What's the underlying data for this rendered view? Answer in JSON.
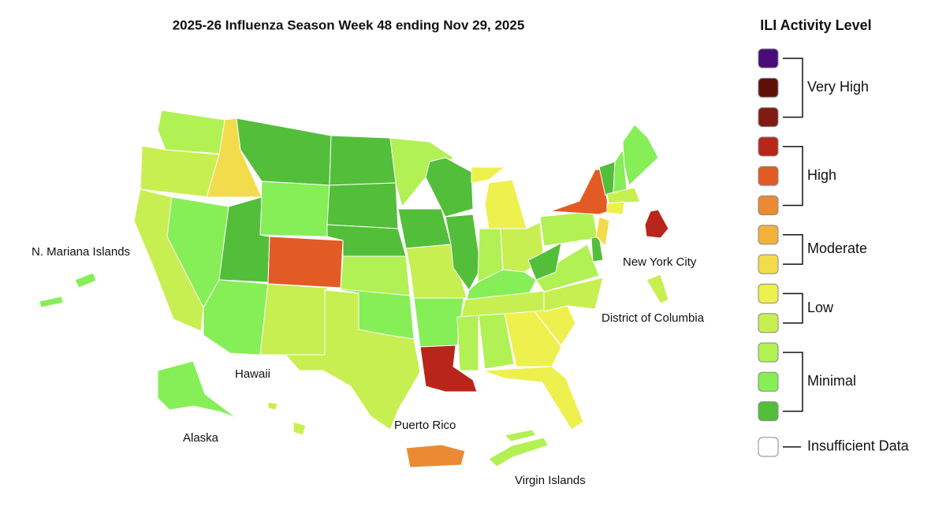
{
  "header": {
    "title": "2025-26 Influenza Season Week 48 ending Nov 29, 2025"
  },
  "legend": {
    "title": "ILI Activity Level",
    "levels": [
      {
        "label": "Very High",
        "colors": [
          "#4a0a78",
          "#5e1008",
          "#801b12"
        ]
      },
      {
        "label": "High",
        "colors": [
          "#b9251a",
          "#e35b24",
          "#ea8b34"
        ]
      },
      {
        "label": "Moderate",
        "colors": [
          "#f1b23b",
          "#f3dc4b"
        ]
      },
      {
        "label": "Low",
        "colors": [
          "#eef04e",
          "#c8ef51"
        ]
      },
      {
        "label": "Minimal",
        "colors": [
          "#b1f154",
          "#86ee56",
          "#53be3a"
        ]
      },
      {
        "label": "Insufficient Data",
        "colors": [
          "#ffffff"
        ]
      }
    ]
  },
  "map": {
    "labels": [
      "N. Mariana Islands",
      "Hawaii",
      "Alaska",
      "Puerto Rico",
      "Virgin Islands",
      "New York City",
      "District of Columbia"
    ]
  }
}
